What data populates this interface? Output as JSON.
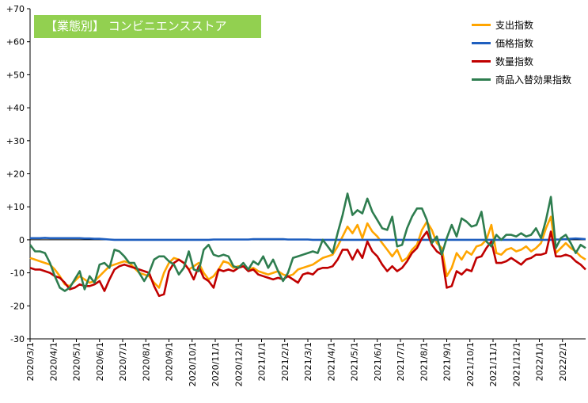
{
  "chart_data": {
    "type": "line",
    "title": "【業態別】 コンビニエンスストア",
    "xlabel": "",
    "ylabel": "",
    "ylim": [
      -30,
      70
    ],
    "ytick_labels": [
      "+70",
      "+60",
      "+50",
      "+40",
      "+30",
      "+20",
      "+10",
      "0",
      "-10",
      "-20",
      "-30"
    ],
    "yticks": [
      70,
      60,
      50,
      40,
      30,
      20,
      10,
      0,
      -10,
      -20,
      -30
    ],
    "xtick_labels": [
      "2020/3/1",
      "2020/4/1",
      "2020/5/1",
      "2020/6/1",
      "2020/7/1",
      "2020/8/1",
      "2020/9/1",
      "2020/10/1",
      "2020/11/1",
      "2020/12/1",
      "2021/1/1",
      "2021/2/1",
      "2021/3/1",
      "2021/4/1",
      "2021/5/1",
      "2021/6/1",
      "2021/7/1",
      "2021/8/1",
      "2021/9/1",
      "2021/10/1",
      "2021/11/1",
      "2021/12/1",
      "2022/1/1",
      "2022/2/1"
    ],
    "legend_position": "top-right",
    "grid": false,
    "series": [
      {
        "name": "支出指数",
        "color": "#ffa500",
        "values": [
          -5.5,
          -6.0,
          -6.5,
          -7.0,
          -7.5,
          -9.0,
          -11.0,
          -13.5,
          -14.0,
          -12.5,
          -11.0,
          -12.0,
          -13.0,
          -12.5,
          -11.0,
          -9.5,
          -8.0,
          -7.5,
          -7.0,
          -6.5,
          -7.0,
          -8.5,
          -10.0,
          -10.5,
          -11.0,
          -13.0,
          -14.5,
          -10.0,
          -7.0,
          -5.5,
          -6.0,
          -7.0,
          -9.0,
          -8.0,
          -7.0,
          -10.0,
          -12.0,
          -11.0,
          -9.0,
          -6.5,
          -7.0,
          -8.5,
          -8.0,
          -8.0,
          -9.0,
          -8.5,
          -9.5,
          -10.0,
          -10.5,
          -10.0,
          -9.5,
          -10.5,
          -11.0,
          -10.5,
          -9.0,
          -8.5,
          -8.0,
          -7.5,
          -6.5,
          -5.5,
          -5.0,
          -4.5,
          -2.0,
          1.0,
          4.0,
          2.0,
          4.5,
          0.5,
          5.0,
          2.5,
          1.0,
          -1.0,
          -3.0,
          -5.0,
          -3.0,
          -6.5,
          -5.5,
          -3.0,
          -1.5,
          3.0,
          5.5,
          3.0,
          -1.0,
          -2.5,
          -11.0,
          -8.5,
          -4.0,
          -6.0,
          -3.5,
          -4.5,
          -2.0,
          -1.5,
          0.0,
          4.5,
          -4.0,
          -4.5,
          -3.0,
          -2.5,
          -3.5,
          -3.0,
          -2.0,
          -3.5,
          -2.5,
          -1.0,
          3.5,
          7.0,
          -4.0,
          -2.5,
          -1.0,
          -2.5,
          -3.5,
          -5.0,
          -6.0
        ]
      },
      {
        "name": "価格指数",
        "color": "#1f5fbf",
        "values": [
          0.5,
          0.5,
          0.5,
          0.6,
          0.5,
          0.5,
          0.5,
          0.5,
          0.5,
          0.5,
          0.5,
          0.4,
          0.4,
          0.3,
          0.3,
          0.2,
          0.1,
          0.0,
          0.0,
          0.0,
          0.0,
          0.0,
          0.0,
          0.0,
          0.0,
          0.0,
          0.0,
          0.0,
          0.0,
          0.0,
          0.0,
          0.0,
          0.0,
          0.0,
          0.0,
          0.0,
          0.0,
          0.1,
          0.1,
          0.1,
          0.1,
          0.1,
          0.1,
          0.1,
          0.1,
          0.2,
          0.2,
          0.2,
          0.2,
          0.2,
          0.2,
          0.2,
          0.1,
          0.1,
          0.1,
          0.1,
          0.1,
          0.0,
          0.0,
          0.0,
          0.0,
          0.0,
          0.0,
          0.0,
          0.0,
          0.0,
          0.0,
          0.0,
          0.0,
          0.0,
          0.0,
          0.0,
          0.0,
          0.0,
          0.0,
          0.0,
          0.0,
          0.0,
          0.0,
          0.0,
          0.0,
          0.0,
          0.0,
          0.0,
          0.0,
          0.0,
          0.0,
          0.0,
          0.0,
          0.0,
          0.0,
          0.0,
          0.0,
          0.0,
          0.0,
          0.0,
          0.0,
          0.0,
          0.0,
          0.0,
          0.0,
          0.0,
          0.0,
          0.0,
          0.0,
          0.0,
          0.1,
          0.1,
          0.2,
          0.3,
          0.4,
          0.3,
          0.2
        ]
      },
      {
        "name": "数量指数",
        "color": "#c00000",
        "values": [
          -8.5,
          -9.0,
          -9.0,
          -9.5,
          -10.0,
          -11.0,
          -11.5,
          -13.0,
          -15.0,
          -14.5,
          -13.5,
          -14.0,
          -14.0,
          -13.5,
          -12.5,
          -15.5,
          -12.0,
          -9.0,
          -8.0,
          -7.5,
          -8.0,
          -8.5,
          -9.0,
          -9.5,
          -10.0,
          -14.0,
          -17.0,
          -16.5,
          -9.5,
          -7.0,
          -6.0,
          -7.0,
          -9.0,
          -12.0,
          -8.0,
          -11.5,
          -12.5,
          -14.5,
          -9.0,
          -9.5,
          -9.0,
          -9.5,
          -8.5,
          -8.0,
          -9.5,
          -9.0,
          -10.5,
          -11.0,
          -11.5,
          -12.0,
          -11.5,
          -12.0,
          -11.0,
          -12.0,
          -13.0,
          -10.5,
          -10.0,
          -10.5,
          -9.0,
          -8.5,
          -8.5,
          -8.0,
          -6.0,
          -3.0,
          -3.0,
          -6.0,
          -3.0,
          -5.5,
          -0.5,
          -3.5,
          -5.0,
          -7.5,
          -9.5,
          -8.0,
          -9.5,
          -8.5,
          -6.5,
          -4.0,
          -2.5,
          0.5,
          2.5,
          -1.5,
          -3.5,
          -4.5,
          -14.5,
          -14.0,
          -9.5,
          -10.5,
          -9.0,
          -9.5,
          -5.5,
          -5.0,
          -2.5,
          -0.5,
          -7.0,
          -7.0,
          -6.5,
          -5.5,
          -6.5,
          -7.5,
          -6.0,
          -5.5,
          -4.5,
          -4.5,
          -4.0,
          2.5,
          -5.0,
          -5.0,
          -4.5,
          -5.0,
          -6.5,
          -7.5,
          -9.0
        ]
      },
      {
        "name": "商品入替効果指数",
        "color": "#2e7d4f",
        "values": [
          -1.5,
          -3.5,
          -3.5,
          -4.0,
          -7.0,
          -11.0,
          -14.5,
          -15.5,
          -14.5,
          -12.0,
          -9.5,
          -15.0,
          -11.0,
          -13.0,
          -7.5,
          -7.0,
          -8.5,
          -3.0,
          -3.5,
          -5.0,
          -7.0,
          -7.0,
          -10.0,
          -12.5,
          -10.0,
          -6.0,
          -5.0,
          -5.0,
          -6.5,
          -7.5,
          -10.5,
          -8.5,
          -3.5,
          -9.0,
          -9.5,
          -3.0,
          -1.5,
          -4.5,
          -5.0,
          -4.5,
          -5.0,
          -8.0,
          -8.5,
          -7.0,
          -9.0,
          -6.5,
          -7.5,
          -5.0,
          -8.5,
          -6.0,
          -9.5,
          -12.5,
          -10.0,
          -5.5,
          -5.0,
          -4.5,
          -4.0,
          -3.5,
          -4.0,
          0.0,
          -2.0,
          -4.0,
          2.0,
          7.5,
          14.0,
          7.5,
          9.0,
          8.0,
          12.5,
          8.5,
          6.0,
          3.5,
          3.0,
          7.0,
          -2.0,
          -1.5,
          3.5,
          7.0,
          9.5,
          9.5,
          6.0,
          -1.0,
          1.0,
          -4.5,
          0.5,
          4.5,
          1.0,
          6.5,
          5.5,
          4.0,
          4.5,
          8.5,
          -0.5,
          -2.0,
          1.5,
          0.0,
          1.5,
          1.5,
          1.0,
          2.0,
          1.0,
          1.5,
          3.5,
          0.5,
          6.0,
          13.0,
          -2.5,
          0.5,
          1.5,
          -1.0,
          -4.0,
          -1.5,
          -2.5
        ]
      }
    ]
  }
}
